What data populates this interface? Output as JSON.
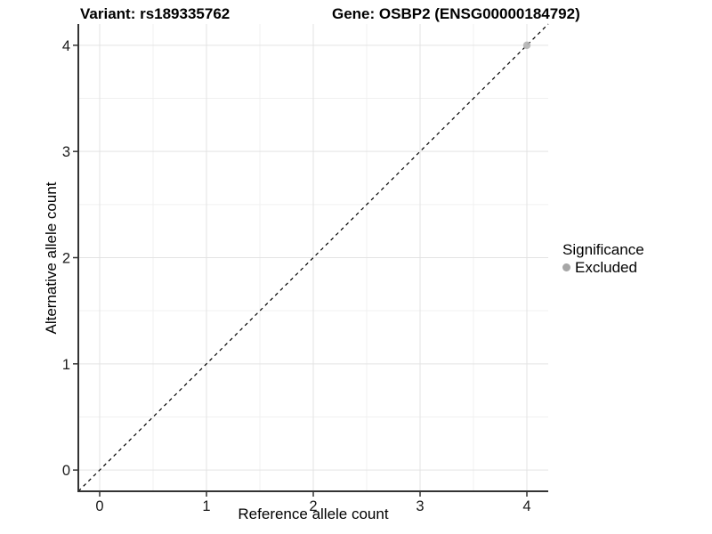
{
  "page": {
    "background": "#ffffff"
  },
  "chart_data": {
    "type": "scatter",
    "titles": {
      "left": "Variant: rs189335762",
      "right": "Gene: OSBP2 (ENSG00000184792)"
    },
    "xlabel": "Reference allele count",
    "ylabel": "Alternative allele count",
    "x_ticks": [
      0,
      1,
      2,
      3,
      4
    ],
    "y_ticks": [
      0,
      1,
      2,
      3,
      4
    ],
    "xlim": [
      -0.2,
      4.2
    ],
    "ylim": [
      -0.2,
      4.2
    ],
    "grid": {
      "major_color": "#e3e3e3",
      "minor_color": "#f0f0f0",
      "minor_between_majors": true
    },
    "axis": {
      "line_color": "#333333",
      "tick_color": "#333333",
      "text_color": "#1a1a1a"
    },
    "identity_line": {
      "style": "dashed",
      "color": "#000000",
      "x1": -0.2,
      "y1": -0.2,
      "x2": 4.2,
      "y2": 4.2
    },
    "points": [
      {
        "x": 4,
        "y": 4,
        "significance": "Excluded",
        "color": "#b3b3b3",
        "opacity": 0.9,
        "r": 4.2
      }
    ],
    "legend": {
      "title": "Significance",
      "position": "right",
      "items": [
        {
          "label": "Excluded",
          "color": "#a6a6a6"
        }
      ]
    }
  }
}
